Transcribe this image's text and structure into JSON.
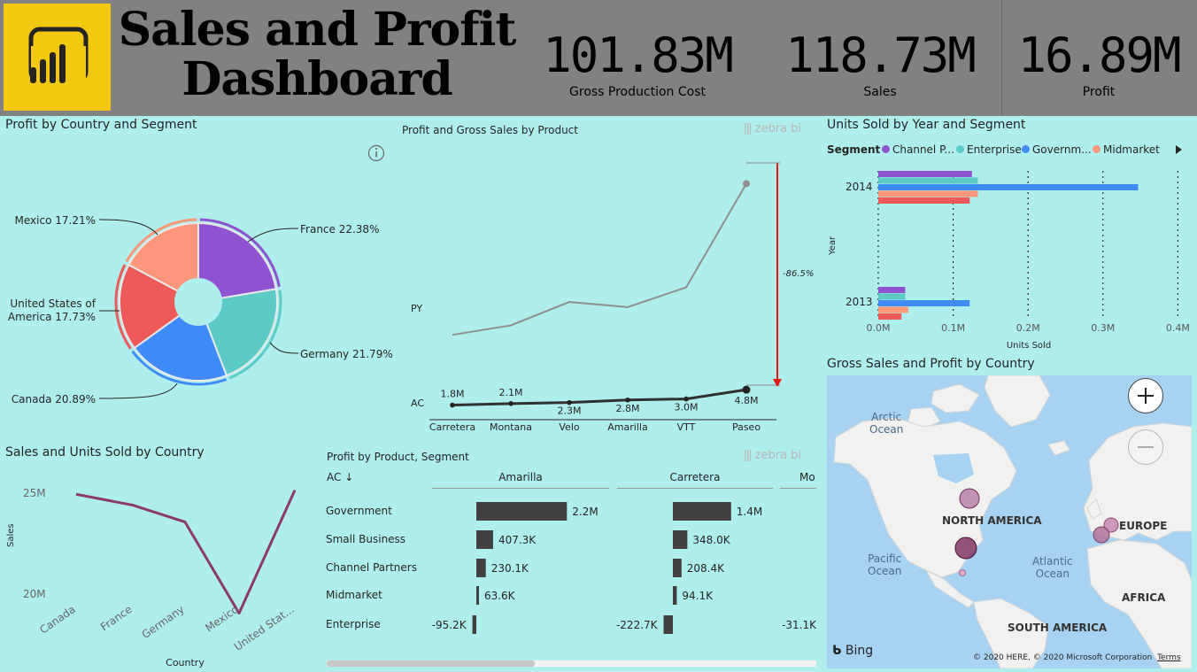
{
  "header": {
    "title_line1": "Sales and Profit",
    "title_line2": "Dashboard",
    "kpis": [
      {
        "value": "101.83M",
        "label": "Gross Production Cost"
      },
      {
        "value": "118.73M",
        "label": "Sales"
      },
      {
        "value": "16.89M",
        "label": "Profit"
      }
    ]
  },
  "icons": {
    "logo": "powerbi-logo-icon",
    "info": "info-icon",
    "zoom_in": "plus-icon",
    "zoom_out": "minus-icon",
    "legend_next": "chevron-right-icon",
    "bing": "bing-icon"
  },
  "pie_chart": {
    "title": "Profit by Country and Segment",
    "chart_data": {
      "type": "pie",
      "slices": [
        {
          "name": "France",
          "value": 22.38,
          "color": "#8f52d0",
          "label": "France 22.38%"
        },
        {
          "name": "Germany",
          "value": 21.79,
          "color": "#5ccbc6",
          "label": "Germany 21.79%"
        },
        {
          "name": "Canada",
          "value": 20.89,
          "color": "#3f8cf8",
          "label": "Canada 20.89%"
        },
        {
          "name": "United States of America",
          "value": 17.73,
          "color": "#ee5959",
          "label_line1": "United States of",
          "label_line2": "America 17.73%"
        },
        {
          "name": "Mexico",
          "value": 17.21,
          "color": "#fc977c",
          "label": "Mexico 17.21%"
        }
      ]
    }
  },
  "variance_chart": {
    "title": "Profit and Gross Sales by Product",
    "watermark": "zebra bi",
    "variance_label": "-86.5%",
    "chart_data": {
      "type": "line",
      "categories": [
        "Carretera",
        "Montana",
        "Velo",
        "Amarilla",
        "VTT",
        "Paseo"
      ],
      "series": [
        {
          "name": "PY",
          "values": [
            6.4,
            7.7,
            10.9,
            10.2,
            12.9,
            27.1
          ]
        },
        {
          "name": "AC",
          "values": [
            1.8,
            2.1,
            2.3,
            2.8,
            3.0,
            4.8
          ],
          "labels": [
            "1.8M",
            "2.1M",
            "2.3M",
            "2.8M",
            "3.0M",
            "4.8M"
          ]
        }
      ]
    }
  },
  "bar_chart": {
    "title": "Units Sold by Year and Segment",
    "legend_title": "Segment",
    "legend": [
      {
        "name": "Channel P...",
        "color": "#8f52d0"
      },
      {
        "name": "Enterprise",
        "color": "#5ccbc6"
      },
      {
        "name": "Governm...",
        "color": "#3f8cf8"
      },
      {
        "name": "Midmarket",
        "color": "#fc977c"
      }
    ],
    "chart_data": {
      "type": "bar",
      "orientation": "horizontal",
      "categories": [
        "2014",
        "2013"
      ],
      "series": [
        {
          "name": "Channel Partners",
          "color": "#8f52d0",
          "values": [
            0.125,
            0.036
          ]
        },
        {
          "name": "Enterprise",
          "color": "#5ccbc6",
          "values": [
            0.133,
            0.036
          ]
        },
        {
          "name": "Government",
          "color": "#3f8cf8",
          "values": [
            0.347,
            0.122
          ]
        },
        {
          "name": "Midmarket",
          "color": "#fc977c",
          "values": [
            0.133,
            0.04
          ]
        },
        {
          "name": "Small Business",
          "color": "#ee5959",
          "values": [
            0.122,
            0.031
          ]
        }
      ],
      "xlabel": "Units Sold",
      "ylabel": "Year",
      "xticks": [
        "0.0M",
        "0.1M",
        "0.2M",
        "0.3M",
        "0.4M"
      ],
      "xlim": [
        0,
        0.4
      ]
    }
  },
  "map": {
    "title": "Gross Sales and Profit by Country",
    "labels": {
      "arctic_line1": "Arctic",
      "arctic_line2": "Ocean",
      "north_america": "NORTH AMERICA",
      "europe": "EUROPE",
      "pacific_line1": "Pacific",
      "pacific_line2": "Ocean",
      "atlantic_line1": "Atlantic",
      "atlantic_line2": "Ocean",
      "africa": "AFRICA",
      "south_america": "SOUTH AMERICA"
    },
    "bing": "Bing",
    "copyright": "© 2020 HERE, © 2020 Microsoft Corporation",
    "terms": "Terms"
  },
  "line_chart": {
    "title": "Sales and Units Sold by Country",
    "chart_data": {
      "type": "line",
      "categories": [
        "Canada",
        "France",
        "Germany",
        "Mexico",
        "United Stat..."
      ],
      "series": [
        {
          "name": "Sales",
          "color": "#8b3a6b",
          "values": [
            24.9,
            24.35,
            23.5,
            18.9,
            25.1
          ]
        }
      ],
      "xlabel": "Country",
      "ylabel": "Sales",
      "yticks": [
        "25M",
        "20M"
      ],
      "ylim": [
        19.0,
        26.3
      ]
    }
  },
  "table_chart": {
    "title": "Profit by Product, Segment",
    "watermark": "zebra bi",
    "sort_header": "AC ↓",
    "columns": [
      "Amarilla",
      "Carretera",
      "Mo"
    ],
    "rows": [
      "Government",
      "Small Business",
      "Channel Partners",
      "Midmarket",
      "Enterprise"
    ],
    "chart_data": {
      "type": "bar",
      "categories": [
        "Government",
        "Small Business",
        "Channel Partners",
        "Midmarket",
        "Enterprise"
      ],
      "series": [
        {
          "name": "Amarilla",
          "values": [
            2.2,
            0.4073,
            0.2301,
            0.0636,
            -0.0952
          ],
          "labels": [
            "2.2M",
            "407.3K",
            "230.1K",
            "63.6K",
            "-95.2K"
          ]
        },
        {
          "name": "Carretera",
          "values": [
            1.4,
            0.348,
            0.2084,
            0.0941,
            -0.2227
          ],
          "labels": [
            "1.4M",
            "348.0K",
            "208.4K",
            "94.1K",
            "-222.7K"
          ]
        },
        {
          "name": "Mo",
          "values": [
            null,
            null,
            null,
            null,
            -0.0311
          ],
          "labels": [
            "",
            "",
            "",
            "",
            "-31.1K"
          ]
        }
      ]
    }
  }
}
